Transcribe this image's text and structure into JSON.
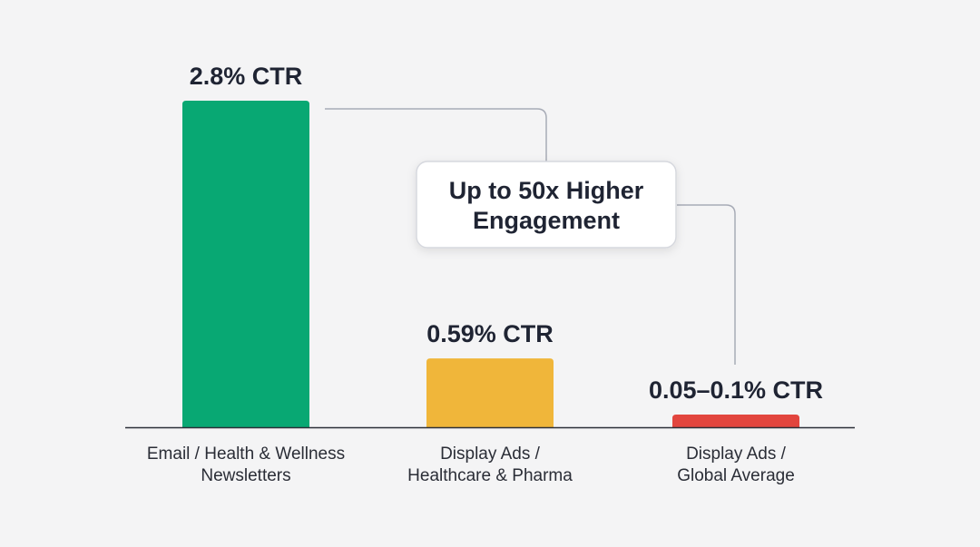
{
  "chart_data": {
    "type": "bar",
    "categories": [
      [
        "Email / Health & Wellness",
        "Newsletters"
      ],
      [
        "Display Ads /",
        "Healthcare & Pharma"
      ],
      [
        "Display Ads /",
        "Global Average"
      ]
    ],
    "values": [
      2.8,
      0.59,
      0.075
    ],
    "value_labels": [
      "2.8% CTR",
      "0.59% CTR",
      "0.05–0.1% CTR"
    ],
    "colors": [
      "#08a873",
      "#f0b63a",
      "#e2453e"
    ],
    "ylim": [
      0,
      2.8
    ],
    "grid": false,
    "title": "",
    "xlabel": "",
    "ylabel": "",
    "annotation": {
      "lines": [
        "Up to 50x Higher",
        "Engagement"
      ]
    }
  }
}
